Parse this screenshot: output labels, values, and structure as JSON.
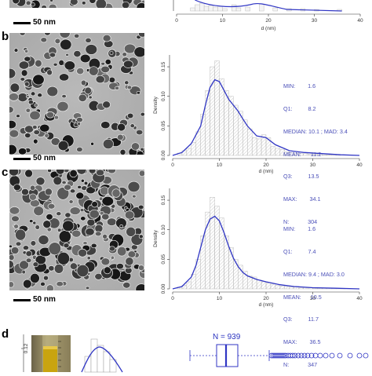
{
  "panels": {
    "a": {
      "scale_label": "50 nm",
      "xlabel": "d (nm)",
      "x_ticks": [
        "0",
        "10",
        "20",
        "30",
        "40"
      ]
    },
    "b": {
      "letter": "b",
      "scale_label": "50 nm",
      "ylabel": "Density",
      "xlabel": "d (nm)",
      "y_ticks": [
        "0.00",
        "0.05",
        "0.10",
        "0.15"
      ],
      "x_ticks": [
        "0",
        "10",
        "20",
        "30",
        "40"
      ],
      "stats": {
        "min": "MIN:        1.6",
        "q1": "Q1:          8.2",
        "median": "MEDIAN: 10.1 ; MAD: 3.4",
        "mean": "MEAN:      11.2",
        "q3": "Q3:          13.5",
        "max": "MAX:        34.1",
        "n": "N:            304"
      }
    },
    "c": {
      "letter": "c",
      "scale_label": "50 nm",
      "ylabel": "Density",
      "xlabel": "d (nm)",
      "y_ticks": [
        "0.00",
        "0.05",
        "0.10",
        "0.15"
      ],
      "x_ticks": [
        "0",
        "10",
        "20",
        "30",
        "40"
      ],
      "stats": {
        "min": "MIN:        1.6",
        "q1": "Q1:          7.4",
        "median": "MEDIAN: 9.4 ; MAD: 3.0",
        "mean": "MEAN:      10.5",
        "q3": "Q3:          11.7",
        "max": "MAX:        36.5",
        "n": "N:            347"
      }
    },
    "d": {
      "letter": "d",
      "y_tick": "0.12",
      "n_label": "N = 939"
    }
  },
  "colors": {
    "curve": "#3036c4",
    "stats": "#4a4fb8",
    "hist": "#bdbdbd"
  },
  "chart_data": [
    {
      "type": "bar",
      "title": "",
      "xlabel": "d (nm)",
      "ylabel": "Density",
      "xlim": [
        0,
        40
      ],
      "ylim": [
        0,
        0.17
      ],
      "categories": [
        "1",
        "2",
        "3",
        "4",
        "5",
        "6",
        "7",
        "8",
        "9",
        "10",
        "11",
        "12",
        "13",
        "14",
        "15",
        "16",
        "17",
        "18",
        "19",
        "20",
        "21",
        "22",
        "23",
        "24",
        "25",
        "26",
        "27",
        "28",
        "29",
        "30",
        "31",
        "32",
        "33",
        "34",
        "35"
      ],
      "values": [
        0.004,
        0.008,
        0.012,
        0.022,
        0.04,
        0.07,
        0.11,
        0.15,
        0.16,
        0.13,
        0.11,
        0.1,
        0.085,
        0.075,
        0.06,
        0.045,
        0.03,
        0.028,
        0.035,
        0.03,
        0.015,
        0.012,
        0.01,
        0.006,
        0.005,
        0.004,
        0.003,
        0.003,
        0.002,
        0.002,
        0.002,
        0.001,
        0.001,
        0.002,
        0.001
      ],
      "density_curve": {
        "x": [
          0,
          2,
          4,
          6,
          7,
          8,
          9,
          10,
          11,
          12,
          13,
          14,
          15,
          16,
          18,
          20,
          22,
          25,
          28,
          32,
          36,
          40
        ],
        "y": [
          0,
          0.005,
          0.02,
          0.05,
          0.085,
          0.115,
          0.128,
          0.125,
          0.11,
          0.095,
          0.085,
          0.075,
          0.062,
          0.05,
          0.033,
          0.03,
          0.018,
          0.008,
          0.005,
          0.003,
          0.001,
          0
        ]
      }
    },
    {
      "type": "bar",
      "title": "",
      "xlabel": "d (nm)",
      "ylabel": "Density",
      "xlim": [
        0,
        40
      ],
      "ylim": [
        0,
        0.17
      ],
      "categories": [
        "1",
        "2",
        "3",
        "4",
        "5",
        "6",
        "7",
        "8",
        "9",
        "10",
        "11",
        "12",
        "13",
        "14",
        "15",
        "16",
        "17",
        "18",
        "19",
        "20",
        "21",
        "22",
        "23",
        "24",
        "25",
        "26",
        "27",
        "28",
        "29",
        "30",
        "31",
        "32",
        "33",
        "34",
        "35",
        "36"
      ],
      "values": [
        0.003,
        0.006,
        0.012,
        0.025,
        0.05,
        0.09,
        0.13,
        0.155,
        0.14,
        0.12,
        0.09,
        0.07,
        0.05,
        0.04,
        0.03,
        0.022,
        0.02,
        0.015,
        0.012,
        0.01,
        0.008,
        0.006,
        0.005,
        0.004,
        0.003,
        0.003,
        0.002,
        0.002,
        0.002,
        0.001,
        0.001,
        0.001,
        0.001,
        0.001,
        0.001,
        0.001
      ],
      "density_curve": {
        "x": [
          0,
          2,
          4,
          5,
          6,
          7,
          8,
          9,
          10,
          11,
          12,
          13,
          14,
          15,
          16,
          18,
          20,
          23,
          26,
          30,
          35,
          40
        ],
        "y": [
          0,
          0.004,
          0.02,
          0.04,
          0.07,
          0.1,
          0.118,
          0.123,
          0.115,
          0.095,
          0.072,
          0.052,
          0.038,
          0.028,
          0.022,
          0.016,
          0.012,
          0.007,
          0.004,
          0.002,
          0.001,
          0
        ]
      }
    }
  ]
}
